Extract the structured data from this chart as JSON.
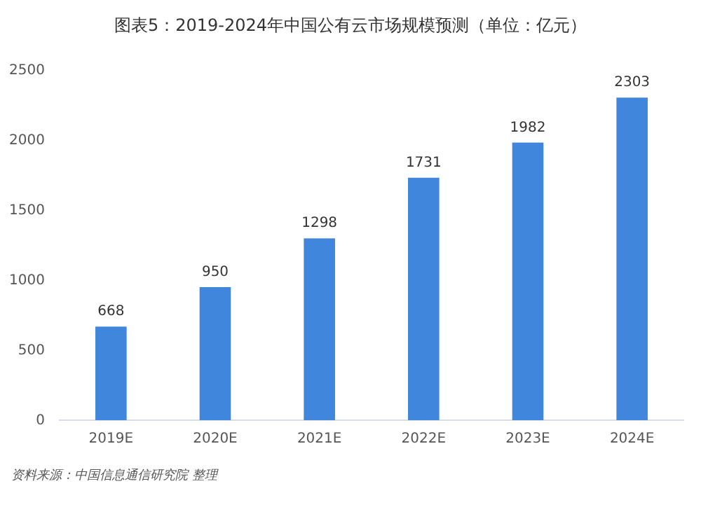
{
  "chart_data": {
    "type": "bar",
    "title": "图表5：2019-2024年中国公有云市场规模预测（单位：亿元）",
    "categories": [
      "2019E",
      "2020E",
      "2021E",
      "2022E",
      "2023E",
      "2024E"
    ],
    "values": [
      668,
      950,
      1298,
      1731,
      1982,
      2303
    ],
    "color": "#3f86dc",
    "data_labels": true,
    "ylim": [
      0,
      2500
    ],
    "yticks": [
      0,
      500,
      1000,
      1500,
      2000,
      2500
    ],
    "grid": false,
    "annotations": [
      "资料来源：中国信息通信研究院 整理"
    ]
  }
}
